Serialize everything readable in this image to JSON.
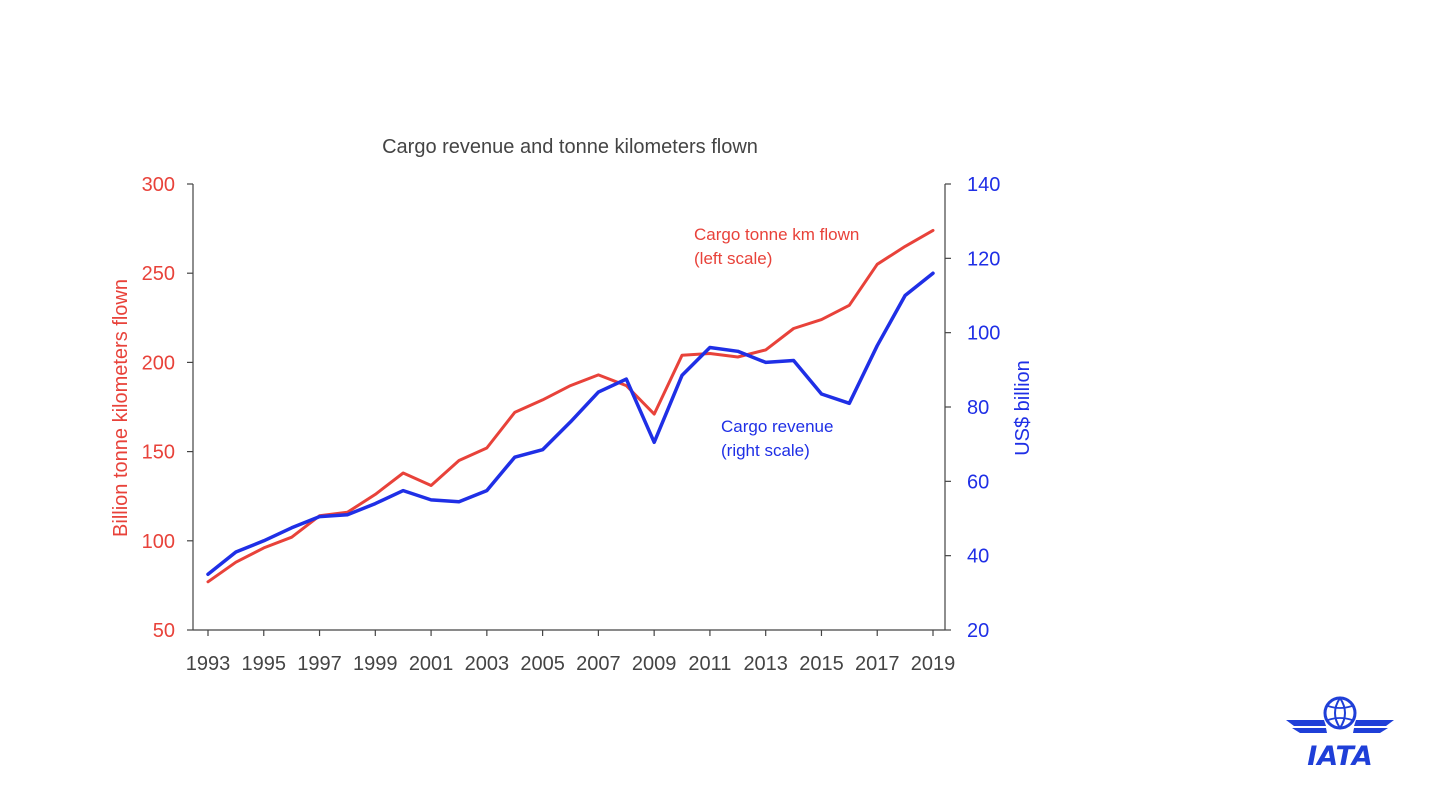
{
  "colors": {
    "tonne": "#e8423a",
    "revenue": "#1f2fe6",
    "axis": "#444444",
    "title": "#444444",
    "logo": "#1f3fd8"
  },
  "chart_data": {
    "type": "line",
    "title": "Cargo revenue and tonne kilometers flown",
    "ylabel_left": "Billion tonne kilometers flown",
    "ylabel_right": "US$ billion",
    "ylim_left": [
      50,
      300
    ],
    "ylim_right": [
      20,
      140
    ],
    "yticks_left": [
      "300",
      "250",
      "200",
      "150",
      "100",
      "50"
    ],
    "yticks_right": [
      "140",
      "120",
      "100",
      "80",
      "60",
      "40",
      "20"
    ],
    "xticks": [
      "1993",
      "1995",
      "1997",
      "1999",
      "2001",
      "2003",
      "2005",
      "2007",
      "2009",
      "2011",
      "2013",
      "2015",
      "2017",
      "2019"
    ],
    "grid": false,
    "series": [
      {
        "name": "Cargo tonne km flown\n(left scale)",
        "label_line1": "Cargo tonne km flown",
        "label_line2": "(left scale)",
        "axis": "left",
        "x": [
          1993,
          1994,
          1995,
          1996,
          1997,
          1998,
          1999,
          2000,
          2001,
          2002,
          2003,
          2004,
          2005,
          2006,
          2007,
          2008,
          2009,
          2010,
          2011,
          2012,
          2013,
          2014,
          2015,
          2016,
          2017,
          2018,
          2019
        ],
        "values": [
          77,
          88,
          96,
          102,
          114,
          116,
          126,
          138,
          131,
          145,
          152,
          172,
          179,
          187,
          193,
          187,
          171,
          204,
          205,
          203,
          207,
          219,
          224,
          232,
          255,
          265,
          274
        ]
      },
      {
        "name": "Cargo revenue\n(right scale)",
        "label_line1": "Cargo revenue",
        "label_line2": "(right scale)",
        "axis": "right",
        "x": [
          1993,
          1994,
          1995,
          1996,
          1997,
          1998,
          1999,
          2000,
          2001,
          2002,
          2003,
          2004,
          2005,
          2006,
          2007,
          2008,
          2009,
          2010,
          2011,
          2012,
          2013,
          2014,
          2015,
          2016,
          2017,
          2018,
          2019
        ],
        "values": [
          35,
          41,
          44,
          47.5,
          50.5,
          51,
          54,
          57.5,
          55,
          54.5,
          57.5,
          66.5,
          68.5,
          76,
          84,
          87.5,
          70.5,
          88.5,
          96,
          95,
          92,
          92.5,
          83.5,
          81,
          96.5,
          110,
          116
        ]
      }
    ]
  },
  "logo": {
    "text": "IATA"
  }
}
